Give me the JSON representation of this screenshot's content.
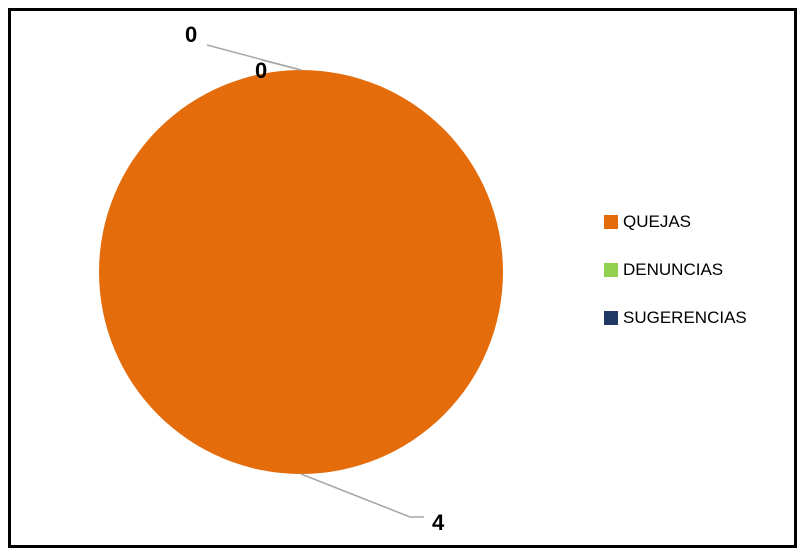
{
  "chart_data": {
    "type": "pie",
    "title": "",
    "categories": [
      "QUEJAS",
      "DENUNCIAS",
      "SUGERENCIAS"
    ],
    "values": [
      4,
      0,
      0
    ],
    "colors": [
      "#E46C0A",
      "#92D050",
      "#1F3864"
    ],
    "data_labels": [
      "4",
      "0",
      "0"
    ],
    "legend_position": "right"
  }
}
